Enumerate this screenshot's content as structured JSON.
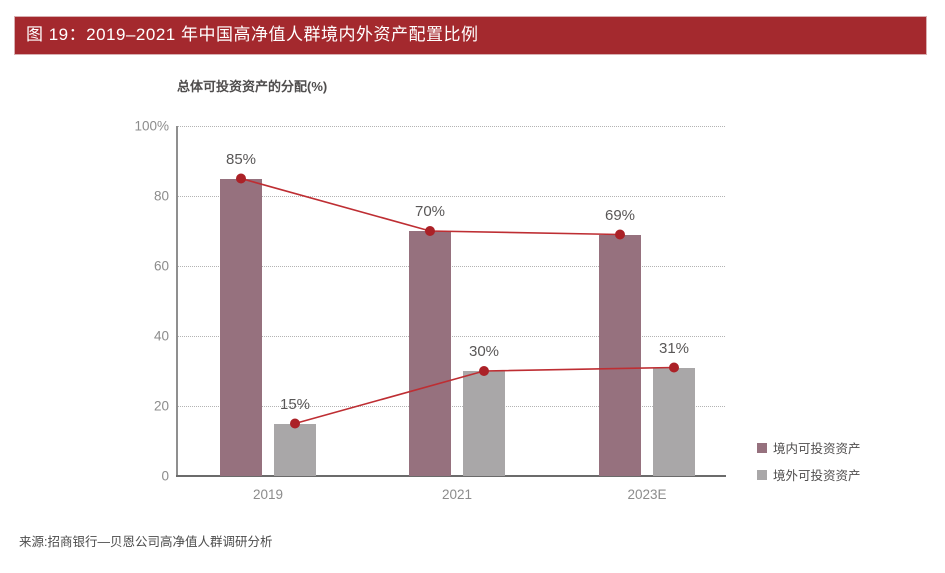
{
  "figure": {
    "title": "图 19：2019–2021 年中国高净值人群境内外资产配置比例",
    "source": "来源:招商银行—贝恩公司高净值人群调研分析",
    "accent_color": "#A4292E"
  },
  "chart_data": {
    "type": "bar",
    "subtitle": "总体可投资资产的分配(%)",
    "categories": [
      "2019",
      "2021",
      "2023E"
    ],
    "series": [
      {
        "name": "境内可投资资产",
        "values": [
          85,
          70,
          69
        ],
        "labels": [
          "85%",
          "70%",
          "69%"
        ],
        "color": "#96717E"
      },
      {
        "name": "境外可投资资产",
        "values": [
          15,
          30,
          31
        ],
        "labels": [
          "15%",
          "30%",
          "31%"
        ],
        "color": "#A9A7A8"
      }
    ],
    "line_overlay": {
      "color": "#BE2E33",
      "dot_color": "#AB2127",
      "note": "red trend lines with dots tracing the tops of both bar series"
    },
    "y_ticks": [
      "100%",
      "80",
      "60",
      "40",
      "20",
      "0"
    ],
    "ylim": [
      0,
      100
    ],
    "grid": "horizontal dotted",
    "legend_position": "right-bottom"
  }
}
